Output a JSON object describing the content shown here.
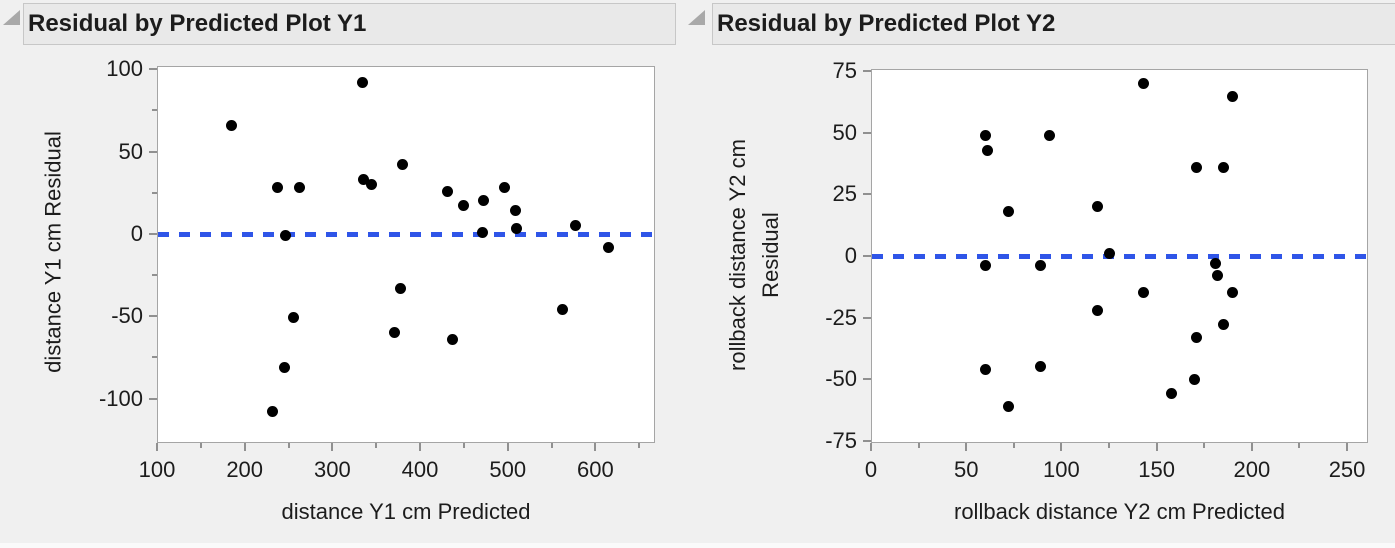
{
  "colors": {
    "background": "#f0f0f0",
    "panel_header_bg": "#e9e9e9",
    "panel_header_border": "#c7c7c7",
    "plot_bg": "#ffffff",
    "plot_border": "#a5a5a5",
    "tick": "#909090",
    "text": "#1c1c1c",
    "ref_line": "#2f55e8",
    "point": "#000000",
    "disclosure_triangle": "#a9a9a9"
  },
  "chart_data": [
    {
      "type": "scatter",
      "title": "Residual by Predicted Plot Y1",
      "xlabel": "distance Y1 cm Predicted",
      "ylabel": "distance Y1 cm Residual",
      "xlim": [
        100,
        668
      ],
      "ylim": [
        -127,
        102
      ],
      "x_axis": {
        "major": [
          100,
          200,
          300,
          400,
          500,
          600
        ],
        "minor": [
          150,
          250,
          350,
          450,
          550,
          650
        ]
      },
      "y_axis": {
        "major": [
          100,
          50,
          0,
          -50,
          -100
        ],
        "minor": [
          75,
          25,
          -25,
          -75
        ]
      },
      "ref_line_y": 0,
      "legend": "none",
      "grid": "off",
      "points": [
        [
          185,
          66
        ],
        [
          334,
          92
        ],
        [
          237,
          28
        ],
        [
          263,
          28
        ],
        [
          335,
          33
        ],
        [
          345,
          30
        ],
        [
          380,
          42
        ],
        [
          431,
          26
        ],
        [
          450,
          17
        ],
        [
          472,
          20
        ],
        [
          496,
          28
        ],
        [
          509,
          14
        ],
        [
          510,
          3
        ],
        [
          471,
          1
        ],
        [
          577,
          5
        ],
        [
          615,
          -8
        ],
        [
          247,
          -1
        ],
        [
          378,
          -33
        ],
        [
          256,
          -51
        ],
        [
          371,
          -60
        ],
        [
          437,
          -64
        ],
        [
          563,
          -46
        ],
        [
          245,
          -81
        ],
        [
          232,
          -108
        ]
      ]
    },
    {
      "type": "scatter",
      "title": "Residual by Predicted Plot Y2",
      "xlabel": "rollback distance Y2 cm Predicted",
      "ylabel": "rollback distance Y2 cm Residual",
      "ylabel_lines": [
        "rollback distance Y2 cm",
        "Residual"
      ],
      "xlim": [
        0,
        261
      ],
      "ylim": [
        -76,
        76
      ],
      "x_axis": {
        "major": [
          0,
          50,
          100,
          150,
          200,
          250
        ],
        "minor": [
          25,
          75,
          125,
          175,
          225
        ]
      },
      "y_axis": {
        "major": [
          75,
          50,
          25,
          0,
          -25,
          -50,
          -75
        ],
        "minor": []
      },
      "ref_line_y": 0,
      "legend": "none",
      "grid": "off",
      "points": [
        [
          60,
          49
        ],
        [
          61,
          43
        ],
        [
          94,
          49
        ],
        [
          72,
          18
        ],
        [
          119,
          20
        ],
        [
          125,
          1
        ],
        [
          143,
          70
        ],
        [
          190,
          65
        ],
        [
          171,
          36
        ],
        [
          185,
          36
        ],
        [
          60,
          -4
        ],
        [
          89,
          -4
        ],
        [
          119,
          -22
        ],
        [
          60,
          -46
        ],
        [
          89,
          -45
        ],
        [
          72,
          -61
        ],
        [
          181,
          -3
        ],
        [
          182,
          -8
        ],
        [
          143,
          -15
        ],
        [
          190,
          -15
        ],
        [
          185,
          -28
        ],
        [
          171,
          -33
        ],
        [
          170,
          -50
        ],
        [
          158,
          -56
        ]
      ]
    }
  ]
}
